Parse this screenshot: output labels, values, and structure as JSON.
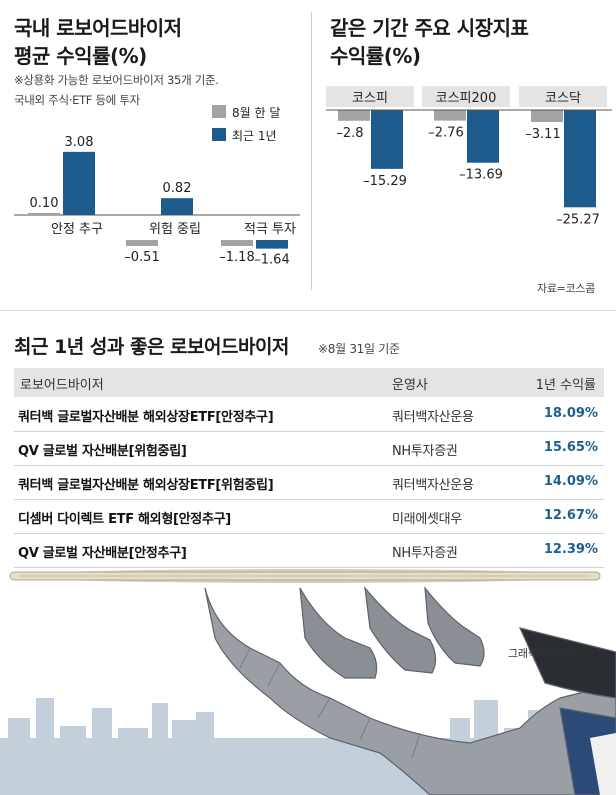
{
  "left_chart": {
    "title_line1": "국내 로보어드바이저",
    "title_line2": "평균 수익률(%)",
    "note_line1": "※상용화 가능한 로보어드바이저 35개 기준.",
    "note_line2": "국내외 주식·ETF 등에 투자",
    "legend": [
      "8월 한 달",
      "최근 1년"
    ]
  },
  "right_chart": {
    "title_line1": "같은 기간 주요 시장지표",
    "title_line2": "수익률(%)",
    "source": "자료=코스콤"
  },
  "table": {
    "title": "최근 1년 성과 좋은 로보어드바이저",
    "note": "※8월 31일 기준",
    "headers": [
      "로보어드바이저",
      "운영사",
      "1년 수익률"
    ],
    "rows": [
      {
        "name": "쿼터백 글로벌자산배분 해외상장ETF[안정추구]",
        "operator": "쿼터백자산운용",
        "return": "18.09%"
      },
      {
        "name": "QV 글로벌 자산배분[위험중립]",
        "operator": "NH투자증권",
        "return": "15.65%"
      },
      {
        "name": "쿼터백 글로벌자산배분 해외상장ETF[위험중립]",
        "operator": "쿼터백자산운용",
        "return": "14.09%"
      },
      {
        "name": "디셈버 다이렉트 ETF 해외형[안정추구]",
        "operator": "미래에셋대우",
        "return": "12.67%"
      },
      {
        "name": "QV 글로벌 자산배분[안정추구]",
        "operator": "NH투자증권",
        "return": "12.39%"
      }
    ]
  },
  "credit": "그래픽=박상훈",
  "colors": {
    "gray_bar": "#a3a3a3",
    "blue_bar": "#1c5b8b",
    "accent_text": "#1e5f8e"
  },
  "chart_data": [
    {
      "type": "bar",
      "categories": [
        "안정 추구",
        "위험 중립",
        "적극 투자"
      ],
      "series": [
        {
          "name": "8월 한 달",
          "values": [
            0.1,
            -0.51,
            -1.18
          ],
          "labels": [
            "0.10",
            "–0.51",
            "–1.18"
          ]
        },
        {
          "name": "최근 1년",
          "values": [
            3.08,
            0.82,
            -1.64
          ],
          "labels": [
            "3.08",
            "0.82",
            "–1.64"
          ]
        }
      ],
      "ylim": [
        -2,
        4
      ]
    },
    {
      "type": "bar",
      "categories": [
        "코스피",
        "코스피200",
        "코스닥"
      ],
      "series": [
        {
          "values": [
            -2.8,
            -2.76,
            -3.11
          ],
          "labels": [
            "–2.8",
            "–2.76",
            "–3.11"
          ]
        },
        {
          "values": [
            -15.29,
            -13.69,
            -25.27
          ],
          "labels": [
            "–15.29",
            "–13.69",
            "–25.27"
          ]
        }
      ],
      "ylim": [
        -27,
        0
      ]
    }
  ]
}
